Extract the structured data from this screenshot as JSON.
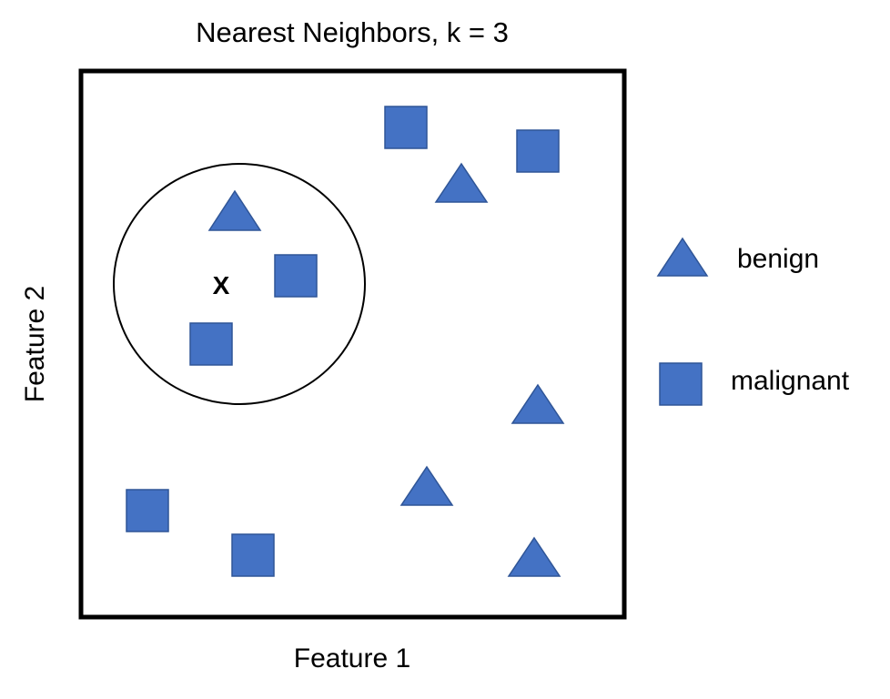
{
  "title": "Nearest Neighbors, k = 3",
  "xlabel": "Feature 1",
  "ylabel": "Feature 2",
  "query_label": "X",
  "colors": {
    "marker_fill": "#4472C4",
    "marker_stroke": "#2F5597",
    "frame": "#000000"
  },
  "legend": [
    {
      "shape": "triangle",
      "label": "benign"
    },
    {
      "shape": "square",
      "label": "malignant"
    }
  ]
}
